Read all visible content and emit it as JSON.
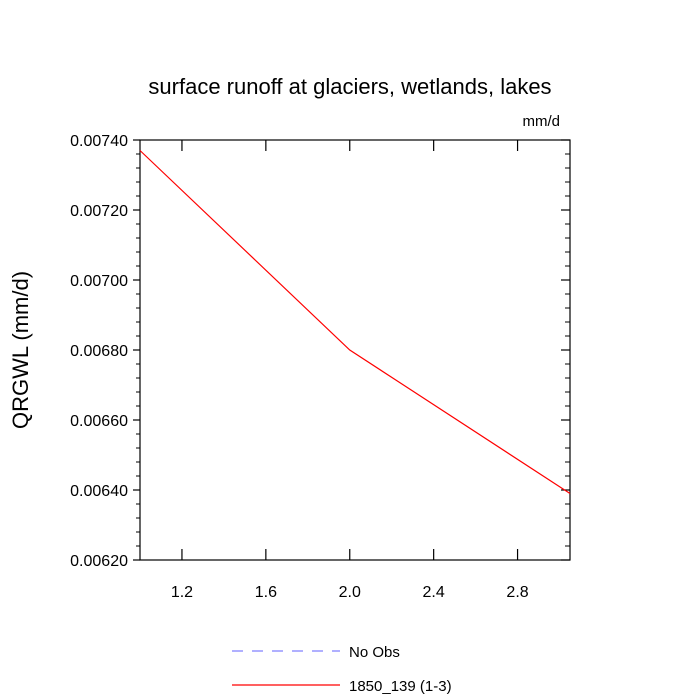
{
  "chart_data": {
    "type": "line",
    "title": "surface runoff at glaciers, wetlands, lakes",
    "units_label": "mm/d",
    "ylabel": "QRGWL  (mm/d)",
    "xlabel": "",
    "xlim": [
      1.0,
      3.05
    ],
    "ylim": [
      0.0062,
      0.0074
    ],
    "x_ticks": [
      1.2,
      1.6,
      2.0,
      2.4,
      2.8
    ],
    "x_tick_labels": [
      "1.2",
      "1.6",
      "2.0",
      "2.4",
      "2.8"
    ],
    "y_ticks": [
      0.0062,
      0.0064,
      0.0066,
      0.0068,
      0.007,
      0.0072,
      0.0074
    ],
    "y_tick_labels": [
      "0.00620",
      "0.00640",
      "0.00660",
      "0.00680",
      "0.00700",
      "0.00720",
      "0.00740"
    ],
    "grid": false,
    "legend_position": "bottom",
    "series": [
      {
        "name": "No Obs",
        "color": "#8080ff",
        "dash": "dashed",
        "x": [],
        "y": []
      },
      {
        "name": "1850_139 (1-3)",
        "color": "#ff0000",
        "dash": "solid",
        "x": [
          1.0,
          2.0,
          3.05
        ],
        "y": [
          0.00737,
          0.0068,
          0.00639
        ]
      }
    ]
  }
}
